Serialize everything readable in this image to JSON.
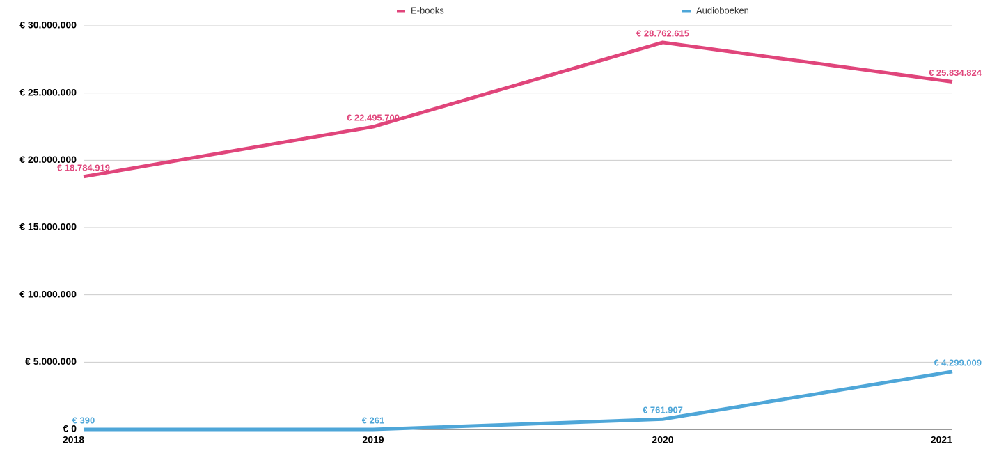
{
  "chart_data": {
    "type": "line",
    "categories": [
      "2018",
      "2019",
      "2020",
      "2021"
    ],
    "series": [
      {
        "name": "E-books",
        "color": "#e0457b",
        "values": [
          18784919,
          22495700,
          28762615,
          25834824
        ],
        "value_labels": [
          "€ 18.784.919",
          "€ 22.495.700",
          "€ 28.762.615",
          "€ 25.834.824"
        ]
      },
      {
        "name": "Audioboeken",
        "color": "#4ea6d8",
        "values": [
          390,
          261,
          761907,
          4299009
        ],
        "value_labels": [
          "€ 390",
          "€ 261",
          "€ 761.907",
          "€ 4.299.009"
        ]
      }
    ],
    "ylim": [
      0,
      30000000
    ],
    "yticks": [
      {
        "value": 0,
        "label": "€ 0"
      },
      {
        "value": 5000000,
        "label": "€ 5.000.000"
      },
      {
        "value": 10000000,
        "label": "€ 10.000.000"
      },
      {
        "value": 15000000,
        "label": "€ 15.000.000"
      },
      {
        "value": 20000000,
        "label": "€ 20.000.000"
      },
      {
        "value": 25000000,
        "label": "€ 25.000.000"
      },
      {
        "value": 30000000,
        "label": "€ 30.000.000"
      }
    ],
    "grid": true,
    "legend": "top"
  }
}
